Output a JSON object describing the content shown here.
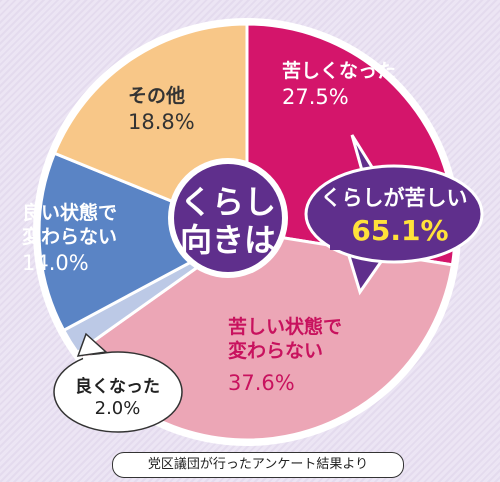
{
  "chart_data": {
    "type": "pie",
    "start_angle_deg": 0,
    "center_label": [
      "くらし",
      "向きは"
    ],
    "slices": [
      {
        "label": "苦しくなった",
        "lines": [
          "苦しくなった"
        ],
        "value": 27.5,
        "value_text": "27.5%",
        "color": "#d4156b"
      },
      {
        "label": "苦しい状態で変わらない",
        "lines": [
          "苦しい状態で",
          "変わらない"
        ],
        "value": 37.6,
        "value_text": "37.6%",
        "color": "#eca6b6"
      },
      {
        "label": "良くなった",
        "lines": [
          "良くなった"
        ],
        "value": 2.0,
        "value_text": "2.0%",
        "color": "#bcc9e6"
      },
      {
        "label": "良い状態で変わらない",
        "lines": [
          "良い状態で",
          "変わらない"
        ],
        "value": 14.0,
        "value_text": "14.0%",
        "color": "#5a84c5"
      },
      {
        "label": "その他",
        "lines": [
          "その他"
        ],
        "value": 18.8,
        "value_text": "18.8%",
        "color": "#f8c788"
      }
    ],
    "callout": {
      "text": "くらしが苦しい",
      "value": 65.1,
      "value_text": "65.1%",
      "color": "#5f2f8c",
      "value_color": "#ffe23a"
    }
  },
  "footer_note": "党区議団が行ったアンケート結果より"
}
